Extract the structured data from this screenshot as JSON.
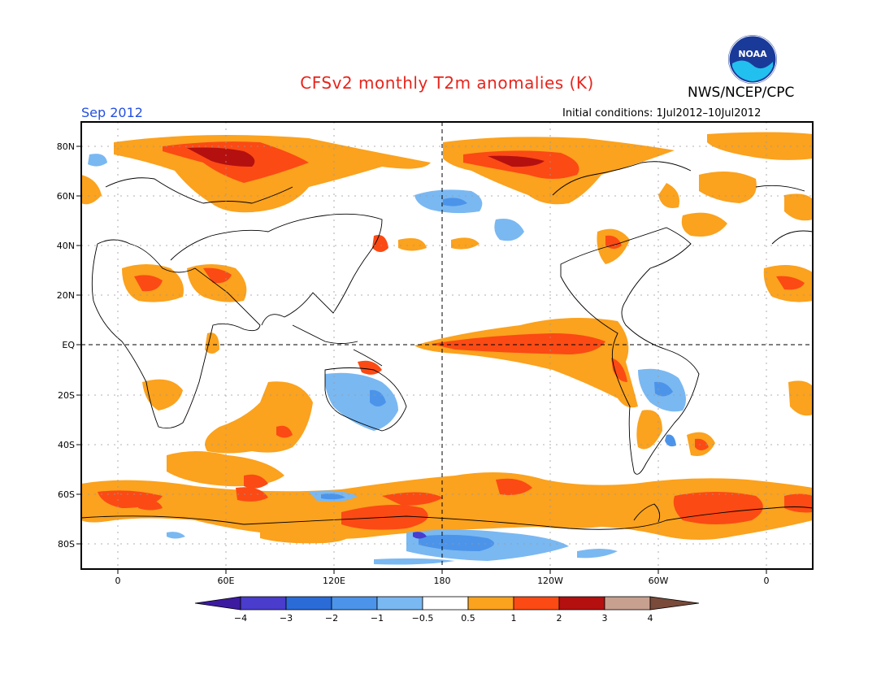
{
  "title": "CFSv2 monthly T2m anomalies (K)",
  "agency": "NWS/NCEP/CPC",
  "logo_text": "NOAA",
  "period": "Sep 2012",
  "initial_conditions": "Initial conditions: 1Jul2012–10Jul2012",
  "lat_labels": [
    "80N",
    "60N",
    "40N",
    "20N",
    "EQ",
    "20S",
    "40S",
    "60S",
    "80S"
  ],
  "lon_labels": [
    "0",
    "60E",
    "120E",
    "180",
    "120W",
    "60W",
    "0"
  ],
  "colorbar": {
    "labels": [
      "−4",
      "−3",
      "−2",
      "−1",
      "−0.5",
      "0.5",
      "1",
      "2",
      "3",
      "4"
    ],
    "colors": [
      "#3c1ba0",
      "#4a3ccc",
      "#2a6bd8",
      "#4b94ea",
      "#7ab8f2",
      "#ffffff",
      "#fba21e",
      "#fb4a14",
      "#b41010",
      "#c8a090",
      "#7a4a3a"
    ]
  },
  "colors": {
    "title": "#e8241c",
    "period": "#2450e0",
    "warm_1": "#fba21e",
    "warm_2": "#fb4a14",
    "warm_3": "#b41010",
    "cool_1": "#7ab8f2",
    "cool_2": "#4b94ea",
    "cool_3": "#2a6bd8"
  }
}
